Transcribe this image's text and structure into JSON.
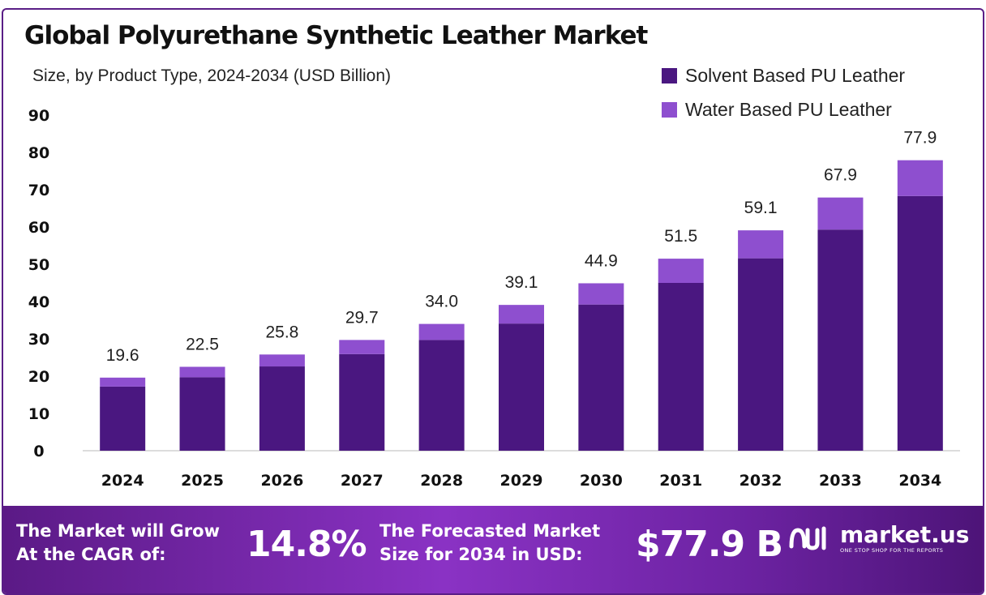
{
  "chart_data": {
    "type": "bar",
    "stacked": true,
    "title": "Global Polyurethane Synthetic Leather Market",
    "subtitle": "Size, by Product Type, 2024-2034 (USD Billion)",
    "categories": [
      "2024",
      "2025",
      "2026",
      "2027",
      "2028",
      "2029",
      "2030",
      "2031",
      "2032",
      "2033",
      "2034"
    ],
    "series": [
      {
        "name": "Solvent Based PU Leather",
        "color": "#4a1780",
        "values": [
          17.2,
          19.7,
          22.6,
          25.9,
          29.7,
          34.1,
          39.2,
          45.0,
          51.6,
          59.3,
          68.3
        ]
      },
      {
        "name": "Water Based PU Leather",
        "color": "#8e4fcf",
        "values": [
          2.4,
          2.8,
          3.2,
          3.8,
          4.3,
          5.0,
          5.7,
          6.5,
          7.5,
          8.6,
          9.6
        ]
      }
    ],
    "totals": [
      "19.6",
      "22.5",
      "25.8",
      "29.7",
      "34.0",
      "39.1",
      "44.9",
      "51.5",
      "59.1",
      "67.9",
      "77.9"
    ],
    "yticks": [
      "0",
      "10",
      "20",
      "30",
      "40",
      "50",
      "60",
      "70",
      "80",
      "90"
    ],
    "ylim": [
      0,
      90
    ],
    "grid": false,
    "legend_position": "top-right"
  },
  "footer": {
    "cagr_label_line1": "The Market will Grow",
    "cagr_label_line2": "At the CAGR of:",
    "cagr_value": "14.8%",
    "forecast_label_line1": "The Forecasted Market",
    "forecast_label_line2": "Size for 2034 in USD:",
    "forecast_value": "$77.9 B",
    "brand_name": "market.us",
    "brand_tagline": "ONE STOP SHOP FOR THE REPORTS",
    "brand_icon": "market-us-logo-icon"
  }
}
